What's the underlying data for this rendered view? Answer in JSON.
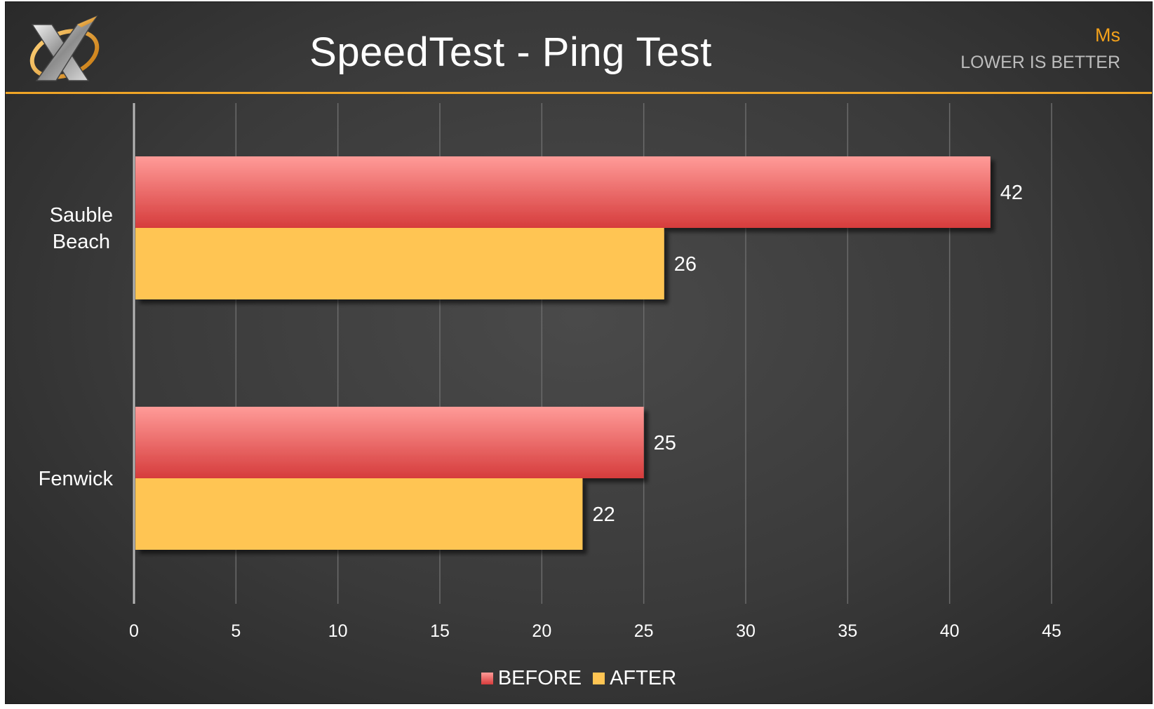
{
  "header": {
    "title": "SpeedTest - Ping Test",
    "unit": "Ms",
    "note": "LOWER IS BETTER"
  },
  "colors": {
    "before_top": "#ff9b98",
    "before_bottom": "#d63c3c",
    "after": "#ffc553",
    "accent": "#f0a526",
    "unit_text": "#f5a21b"
  },
  "logo_icon": "x-logo-icon",
  "chart_data": {
    "type": "bar",
    "orientation": "horizontal",
    "categories": [
      "Sauble Beach",
      "Fenwick"
    ],
    "category_lines": [
      [
        "Sauble",
        "Beach"
      ],
      [
        "Fenwick"
      ]
    ],
    "series": [
      {
        "name": "BEFORE",
        "values": [
          42,
          25
        ]
      },
      {
        "name": "AFTER",
        "values": [
          26,
          22
        ]
      }
    ],
    "xlim": [
      0,
      45
    ],
    "xticks": [
      0,
      5,
      10,
      15,
      20,
      25,
      30,
      35,
      40,
      45
    ],
    "grid": true,
    "legend_position": "bottom"
  }
}
